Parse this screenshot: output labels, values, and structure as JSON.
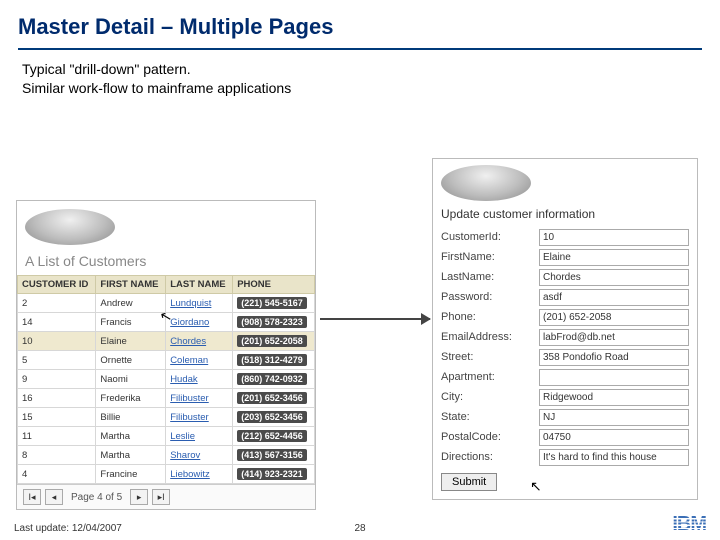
{
  "slide": {
    "title": "Master Detail – Multiple Pages",
    "subtitle_line1": "Typical \"drill-down\" pattern.",
    "subtitle_line2": "Similar work-flow to mainframe applications"
  },
  "list_panel": {
    "heading": "A List of Customers",
    "columns": [
      "CUSTOMER ID",
      "FIRST NAME",
      "LAST NAME",
      "PHONE"
    ],
    "rows": [
      {
        "id": "2",
        "first": "Andrew",
        "last": "Lundquist",
        "phone": "(221) 545-5167"
      },
      {
        "id": "14",
        "first": "Francis",
        "last": "Giordano",
        "phone": "(908) 578-2323"
      },
      {
        "id": "10",
        "first": "Elaine",
        "last": "Chordes",
        "phone": "(201) 652-2058",
        "selected": true
      },
      {
        "id": "5",
        "first": "Ornette",
        "last": "Coleman",
        "phone": "(518) 312-4279"
      },
      {
        "id": "9",
        "first": "Naomi",
        "last": "Hudak",
        "phone": "(860) 742-0932"
      },
      {
        "id": "16",
        "first": "Frederika",
        "last": "Filibuster",
        "phone": "(201) 652-3456"
      },
      {
        "id": "15",
        "first": "Billie",
        "last": "Filibuster",
        "phone": "(203) 652-3456"
      },
      {
        "id": "11",
        "first": "Martha",
        "last": "Leslie",
        "phone": "(212) 652-4456"
      },
      {
        "id": "8",
        "first": "Martha",
        "last": "Sharov",
        "phone": "(413) 567-3156"
      },
      {
        "id": "4",
        "first": "Francine",
        "last": "Liebowitz",
        "phone": "(414) 923-2321"
      }
    ],
    "pager": {
      "text": "Page 4 of 5"
    }
  },
  "detail_panel": {
    "heading": "Update customer information",
    "fields": {
      "CustomerId": "10",
      "FirstName": "Elaine",
      "LastName": "Chordes",
      "Password": "asdf",
      "Phone": "(201) 652-2058",
      "EmailAddress": "labFrod@db.net",
      "Street": "358 Pondofio Road",
      "Apartment": "",
      "City": "Ridgewood",
      "State": "NJ",
      "PostalCode": "04750",
      "Directions": "It's hard to find this house"
    },
    "submit_label": "Submit"
  },
  "footer": {
    "last_update": "Last update: 12/04/2007",
    "page_number": "28",
    "brand": "IBM"
  },
  "colors": {
    "title": "#002b6d",
    "underline": "#003a7a",
    "th_bg": "#e9e4c9",
    "sel_bg": "#efe9cf",
    "badge_bg": "#4b4b4b",
    "link": "#2a5db0",
    "ibm": "#3b6fb6"
  }
}
